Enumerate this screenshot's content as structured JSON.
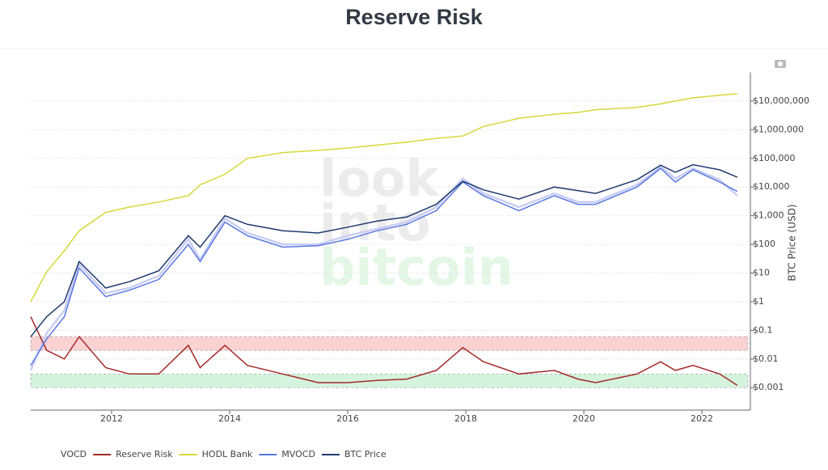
{
  "chart_data": {
    "type": "line",
    "title": "Reserve Risk",
    "y_label": "BTC Price (USD)",
    "watermark": [
      "look",
      "into",
      "bitcoin"
    ],
    "log_y": true,
    "grid": true,
    "xlim": [
      2010.63,
      2022.78
    ],
    "xticks": [
      2012,
      2014,
      2016,
      2018,
      2020,
      2022
    ],
    "ylim": [
      0.0002,
      100000000
    ],
    "yticks": [
      {
        "value": 0.001,
        "label": "$0.001"
      },
      {
        "value": 0.01,
        "label": "$0.01"
      },
      {
        "value": 0.1,
        "label": "$0.1"
      },
      {
        "value": 1,
        "label": "$1"
      },
      {
        "value": 10,
        "label": "$10"
      },
      {
        "value": 100,
        "label": "$100"
      },
      {
        "value": 1000,
        "label": "$1,000"
      },
      {
        "value": 10000,
        "label": "$10,000"
      },
      {
        "value": 100000,
        "label": "$100,000"
      },
      {
        "value": 1000000,
        "label": "$1,000,000"
      },
      {
        "value": 10000000,
        "label": "$10,000,000"
      }
    ],
    "bands": [
      {
        "range": [
          0.02,
          0.06
        ],
        "color": "#f8b4b4"
      },
      {
        "range": [
          0.001,
          0.003
        ],
        "color": "#b8ecc8"
      }
    ],
    "x": [
      2010.63,
      2010.9,
      2011.2,
      2011.45,
      2011.9,
      2012.3,
      2012.8,
      2013.3,
      2013.5,
      2013.92,
      2014.3,
      2014.9,
      2015.5,
      2016.0,
      2016.5,
      2017.0,
      2017.5,
      2017.95,
      2018.3,
      2018.9,
      2019.5,
      2019.9,
      2020.2,
      2020.9,
      2021.3,
      2021.55,
      2021.85,
      2022.3,
      2022.6
    ],
    "series": [
      {
        "name": "VOCD",
        "color": "#c9cdf5",
        "values": [
          0.004,
          0.08,
          0.5,
          20,
          2,
          3,
          8,
          150,
          30,
          800,
          250,
          100,
          100,
          200,
          350,
          600,
          2000,
          20000,
          6000,
          2000,
          6000,
          3000,
          3000,
          12000,
          50000,
          20000,
          45000,
          18000,
          5000
        ]
      },
      {
        "name": "Reserve Risk",
        "color": "#a52a2a",
        "values": [
          0.3,
          0.02,
          0.01,
          0.06,
          0.005,
          0.003,
          0.003,
          0.03,
          0.005,
          0.03,
          0.006,
          0.003,
          0.0015,
          0.0015,
          0.0018,
          0.002,
          0.004,
          0.025,
          0.008,
          0.003,
          0.004,
          0.002,
          0.0015,
          0.003,
          0.008,
          0.004,
          0.006,
          0.003,
          0.0012
        ]
      },
      {
        "name": "HODL Bank",
        "color": "#d8d83c",
        "values": [
          1,
          11,
          60,
          300,
          1300,
          2000,
          3000,
          5000,
          12000,
          28000,
          100000,
          160000,
          190000,
          230000,
          290000,
          370000,
          500000,
          600000,
          1300000,
          2500000,
          3500000,
          4000000,
          5000000,
          6000000,
          8000000,
          10000000,
          13000000,
          16000000,
          18000000
        ]
      },
      {
        "name": "MVOCD",
        "color": "#5b78e0",
        "values": [
          0.006,
          0.05,
          0.3,
          15,
          1.5,
          2.5,
          6,
          100,
          25,
          600,
          200,
          80,
          90,
          150,
          300,
          500,
          1500,
          15000,
          5000,
          1500,
          5000,
          2500,
          2500,
          10000,
          45000,
          15000,
          40000,
          15000,
          7000
        ]
      },
      {
        "name": "BTC Price",
        "color": "#1f3a6e",
        "values": [
          0.06,
          0.3,
          1,
          25,
          3,
          5,
          12,
          200,
          80,
          1000,
          500,
          300,
          250,
          400,
          650,
          900,
          2500,
          16000,
          8000,
          3800,
          10000,
          7500,
          6000,
          18000,
          58000,
          33000,
          60000,
          40000,
          22000
        ]
      }
    ]
  }
}
